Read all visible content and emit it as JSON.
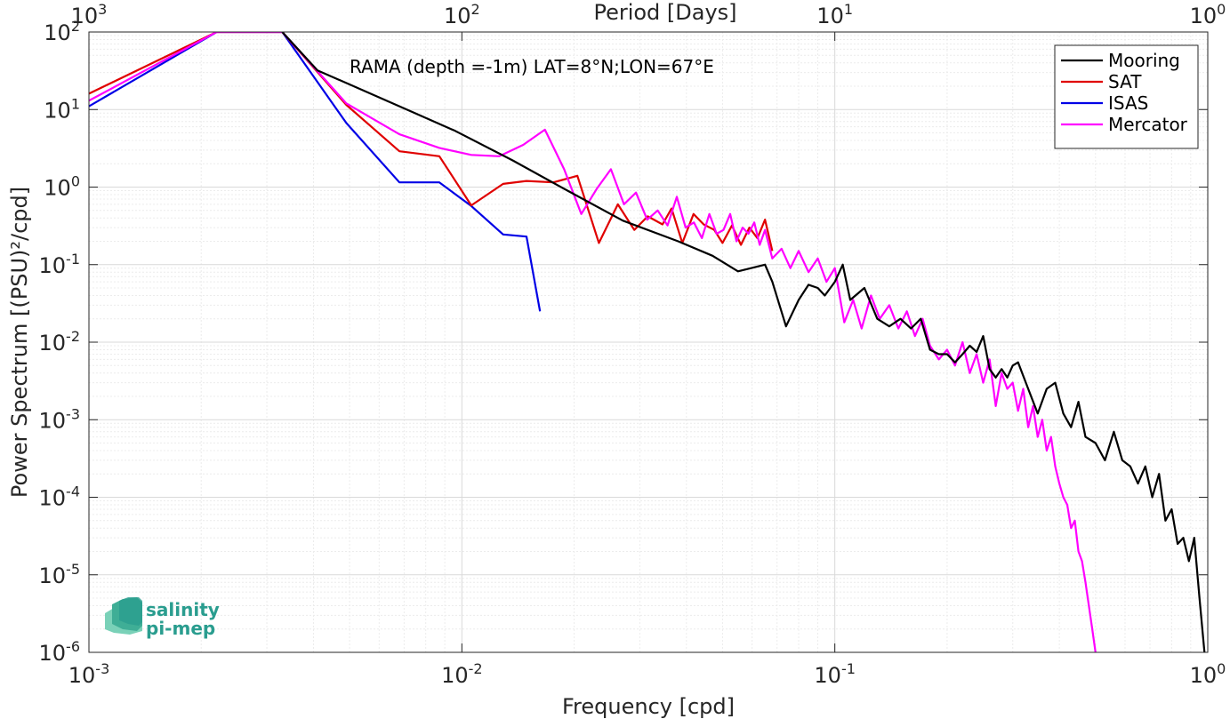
{
  "chart_data": {
    "type": "line",
    "xlabel": "Frequency [cpd]",
    "ylabel": "Power Spectrum [(PSU)²/cpd]",
    "top_xlabel": "Period [Days]",
    "annotation": "RAMA (depth =-1m) LAT=8°N;LON=67°E",
    "x_scale": "log",
    "y_scale": "log",
    "xlim": [
      0.001,
      1
    ],
    "ylim": [
      1e-06,
      100
    ],
    "grid": true,
    "legend_position": "top-right",
    "x_ticks": [
      {
        "value": 0.001,
        "base": "10",
        "exp": "-3"
      },
      {
        "value": 0.01,
        "base": "10",
        "exp": "-2"
      },
      {
        "value": 0.1,
        "base": "10",
        "exp": "-1"
      },
      {
        "value": 1,
        "base": "10",
        "exp": "0"
      }
    ],
    "top_ticks": [
      {
        "period": 1000,
        "base": "10",
        "exp": "3"
      },
      {
        "period": 100,
        "base": "10",
        "exp": "2"
      },
      {
        "period": 10,
        "base": "10",
        "exp": "1"
      },
      {
        "period": 1,
        "base": "10",
        "exp": "0"
      }
    ],
    "y_ticks": [
      {
        "value": 100,
        "base": "10",
        "exp": "2"
      },
      {
        "value": 10,
        "base": "10",
        "exp": "1"
      },
      {
        "value": 1,
        "base": "10",
        "exp": "0"
      },
      {
        "value": 0.1,
        "base": "10",
        "exp": "-1"
      },
      {
        "value": 0.01,
        "base": "10",
        "exp": "-2"
      },
      {
        "value": 0.001,
        "base": "10",
        "exp": "-3"
      },
      {
        "value": 0.0001,
        "base": "10",
        "exp": "-4"
      },
      {
        "value": 1e-05,
        "base": "10",
        "exp": "-5"
      },
      {
        "value": 1e-06,
        "base": "10",
        "exp": "-6"
      }
    ],
    "series": [
      {
        "name": "Mooring",
        "color": "#000000",
        "x": [
          0.0033,
          0.0041,
          0.0068,
          0.0096,
          0.0137,
          0.0192,
          0.027,
          0.038,
          0.047,
          0.055,
          0.065,
          0.068,
          0.074,
          0.08,
          0.085,
          0.09,
          0.094,
          0.1,
          0.105,
          0.11,
          0.12,
          0.13,
          0.14,
          0.15,
          0.16,
          0.17,
          0.18,
          0.19,
          0.2,
          0.21,
          0.22,
          0.23,
          0.24,
          0.25,
          0.26,
          0.27,
          0.28,
          0.29,
          0.3,
          0.31,
          0.33,
          0.35,
          0.37,
          0.39,
          0.41,
          0.43,
          0.45,
          0.47,
          0.5,
          0.53,
          0.56,
          0.59,
          0.62,
          0.65,
          0.68,
          0.71,
          0.74,
          0.77,
          0.8,
          0.83,
          0.86,
          0.89,
          0.92,
          0.95,
          0.98
        ],
        "y": [
          100,
          32,
          11,
          5.3,
          2.2,
          0.9,
          0.37,
          0.2,
          0.13,
          0.082,
          0.1,
          0.06,
          0.016,
          0.035,
          0.055,
          0.05,
          0.04,
          0.06,
          0.1,
          0.035,
          0.05,
          0.02,
          0.016,
          0.02,
          0.015,
          0.02,
          0.008,
          0.007,
          0.007,
          0.0055,
          0.007,
          0.009,
          0.0075,
          0.012,
          0.0045,
          0.0035,
          0.0045,
          0.0035,
          0.005,
          0.0055,
          0.0025,
          0.0012,
          0.0025,
          0.003,
          0.0012,
          0.0008,
          0.0017,
          0.0006,
          0.0005,
          0.0003,
          0.0007,
          0.0003,
          0.00025,
          0.00015,
          0.00025,
          0.0001,
          0.0002,
          5e-05,
          7e-05,
          2.5e-05,
          3e-05,
          1.5e-05,
          3e-05,
          5e-06,
          1e-06
        ]
      },
      {
        "name": "SAT",
        "color": "#e00000",
        "x": [
          0.001,
          0.0022,
          0.0033,
          0.0049,
          0.0068,
          0.0087,
          0.0106,
          0.0129,
          0.0149,
          0.0176,
          0.0204,
          0.0233,
          0.0262,
          0.029,
          0.0315,
          0.0345,
          0.0365,
          0.039,
          0.0418,
          0.0445,
          0.0475,
          0.05,
          0.053,
          0.056,
          0.059,
          0.062,
          0.065,
          0.068
        ],
        "y": [
          16,
          100,
          100,
          11.5,
          2.9,
          2.5,
          0.58,
          1.1,
          1.2,
          1.15,
          1.4,
          0.19,
          0.6,
          0.28,
          0.42,
          0.33,
          0.53,
          0.19,
          0.45,
          0.33,
          0.28,
          0.19,
          0.32,
          0.18,
          0.3,
          0.22,
          0.38,
          0.15
        ]
      },
      {
        "name": "ISAS",
        "color": "#0000e6",
        "x": [
          0.001,
          0.0022,
          0.0033,
          0.0049,
          0.0068,
          0.0087,
          0.0106,
          0.0129,
          0.0149,
          0.0162
        ],
        "y": [
          11,
          100,
          100,
          6.7,
          1.15,
          1.15,
          0.57,
          0.245,
          0.23,
          0.025
        ]
      },
      {
        "name": "Mercator",
        "color": "#ff00ff",
        "x": [
          0.001,
          0.0022,
          0.0033,
          0.0049,
          0.0068,
          0.0087,
          0.0106,
          0.0126,
          0.0146,
          0.0167,
          0.0188,
          0.0209,
          0.023,
          0.0251,
          0.0272,
          0.0293,
          0.0314,
          0.0335,
          0.0356,
          0.0377,
          0.0398,
          0.0419,
          0.044,
          0.0461,
          0.0482,
          0.0503,
          0.0524,
          0.0545,
          0.0566,
          0.0587,
          0.0608,
          0.0629,
          0.065,
          0.068,
          0.072,
          0.076,
          0.08,
          0.085,
          0.09,
          0.095,
          0.1,
          0.106,
          0.112,
          0.118,
          0.125,
          0.132,
          0.14,
          0.148,
          0.156,
          0.164,
          0.172,
          0.18,
          0.19,
          0.2,
          0.21,
          0.22,
          0.23,
          0.24,
          0.25,
          0.26,
          0.27,
          0.28,
          0.29,
          0.3,
          0.31,
          0.32,
          0.33,
          0.34,
          0.35,
          0.36,
          0.37,
          0.38,
          0.39,
          0.4,
          0.41,
          0.42,
          0.43,
          0.44,
          0.45,
          0.46,
          0.47,
          0.48,
          0.49,
          0.5
        ],
        "y": [
          13,
          100,
          100,
          12,
          4.8,
          3.2,
          2.6,
          2.5,
          3.5,
          5.5,
          1.7,
          0.45,
          0.95,
          1.7,
          0.6,
          0.85,
          0.38,
          0.5,
          0.32,
          0.75,
          0.3,
          0.35,
          0.22,
          0.45,
          0.25,
          0.28,
          0.45,
          0.2,
          0.3,
          0.25,
          0.35,
          0.18,
          0.28,
          0.12,
          0.16,
          0.09,
          0.15,
          0.08,
          0.12,
          0.06,
          0.09,
          0.018,
          0.035,
          0.015,
          0.04,
          0.02,
          0.03,
          0.015,
          0.025,
          0.012,
          0.02,
          0.009,
          0.006,
          0.008,
          0.005,
          0.01,
          0.004,
          0.007,
          0.003,
          0.006,
          0.0015,
          0.004,
          0.0025,
          0.003,
          0.0013,
          0.0025,
          0.0008,
          0.0015,
          0.0006,
          0.001,
          0.0004,
          0.0006,
          0.00025,
          0.00015,
          0.0001,
          8e-05,
          4e-05,
          5e-05,
          2e-05,
          1.5e-05,
          8e-06,
          4e-06,
          2e-06,
          1e-06
        ]
      }
    ]
  },
  "logo": {
    "line1": "salinity",
    "line2": "pi-mep"
  }
}
